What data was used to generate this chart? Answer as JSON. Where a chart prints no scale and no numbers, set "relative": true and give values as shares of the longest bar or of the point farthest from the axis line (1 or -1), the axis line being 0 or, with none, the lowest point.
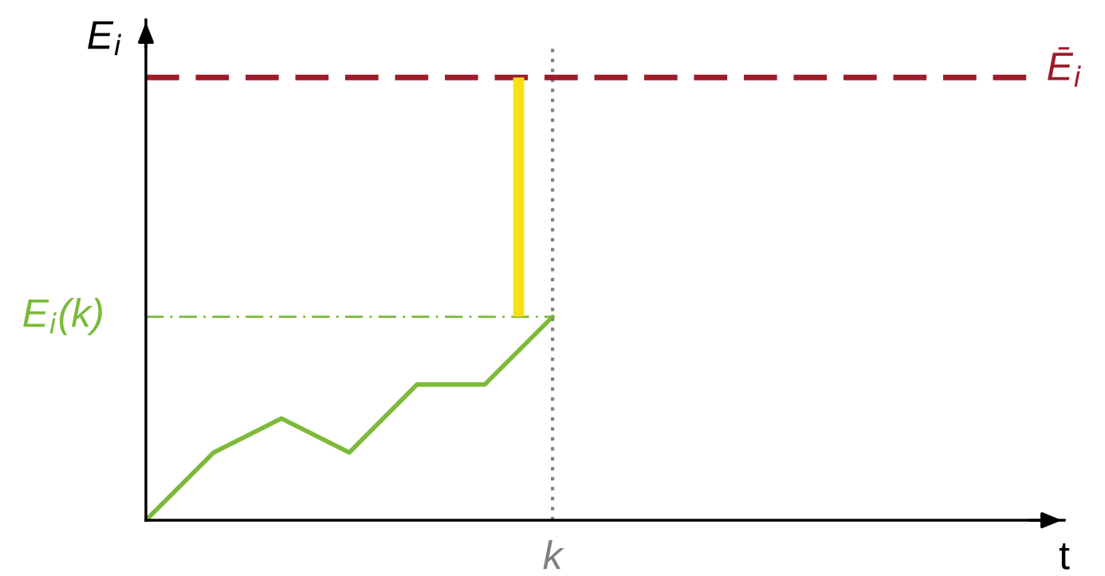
{
  "chart_data": {
    "type": "line",
    "relative": true,
    "annotations": [
      "E$_{i}$",
      "t",
      "k"
    ],
    "marker": "none",
    "categories": [
      null,
      null,
      null,
      null,
      null,
      null,
      null
    ],
    "series": [
      {
        "color": "#7cba3a",
        "values": [
          0,
          0.333,
          0.5,
          0.333,
          0.667,
          0.667,
          1
        ],
        "line_style": "solid"
      }
    ],
    "ref_lines": [
      {
        "axis": "y",
        "value": 2.176,
        "label": "Ē$_{i}$",
        "color": "#9e1b2a",
        "line_style": "dashed"
      },
      {
        "axis": "y",
        "value": 1,
        "label": "E$_{i}$(k)",
        "color": "#7cba3a",
        "line_style": "dashdot"
      }
    ]
  }
}
